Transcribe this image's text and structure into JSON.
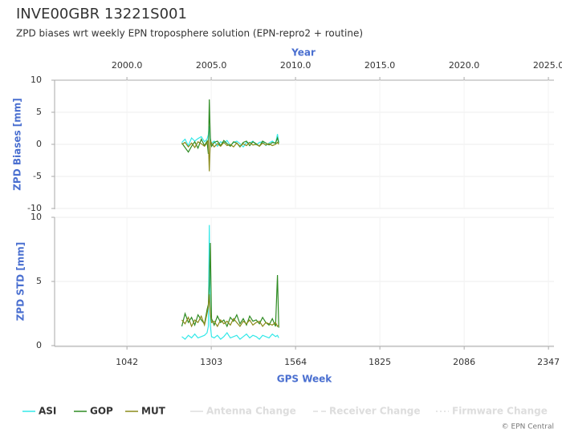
{
  "chart_data": [
    {
      "type": "line",
      "title": "INVE00GBR 13221S001",
      "subtitle": "ZPD biases wrt weekly EPN troposphere solution (EPN-repro2 + routine)",
      "x2label": "Year",
      "ylabel": "ZPD Biases [mm]",
      "xlim": [
        818,
        2364
      ],
      "x2lim": [
        1995.71,
        2025.33
      ],
      "x2ticks": [
        {
          "value": 2000,
          "label": "2000.0"
        },
        {
          "value": 2005,
          "label": "2005.0"
        },
        {
          "value": 2010,
          "label": "2010.0"
        },
        {
          "value": 2015,
          "label": "2015.0"
        },
        {
          "value": 2020,
          "label": "2020.0"
        },
        {
          "value": 2025,
          "label": "2025.0"
        }
      ],
      "ylim": [
        -10,
        10
      ],
      "yticks": [
        10,
        5,
        0,
        -5,
        -10
      ],
      "grid": true,
      "x": [
        1212,
        1222,
        1232,
        1242,
        1252,
        1262,
        1272,
        1282,
        1290,
        1294,
        1297,
        1300,
        1304,
        1312,
        1322,
        1332,
        1342,
        1352,
        1362,
        1372,
        1382,
        1392,
        1402,
        1412,
        1422,
        1432,
        1442,
        1452,
        1462,
        1472,
        1482,
        1492,
        1502,
        1508,
        1512
      ],
      "series": [
        {
          "name": "ASI",
          "color": "#33e8e8",
          "values": [
            0.3,
            0.8,
            -0.2,
            1.0,
            0.5,
            0.9,
            1.2,
            0.4,
            0.8,
            1.5,
            2.8,
            0.6,
            0.2,
            0.5,
            -0.3,
            0.4,
            0.2,
            0.6,
            -0.2,
            0.3,
            0.5,
            0.1,
            -0.4,
            0.3,
            0.2,
            0.5,
            -0.1,
            0.3,
            0.4,
            -0.2,
            0.2,
            0.5,
            0.1,
            1.6,
            0.3
          ]
        },
        {
          "name": "GOP",
          "color": "#2e8b22",
          "values": [
            0.2,
            -0.5,
            -1.2,
            -0.3,
            0.4,
            -0.6,
            0.8,
            -0.2,
            0.5,
            -1.5,
            7.0,
            1.0,
            -0.3,
            0.3,
            0.5,
            -0.2,
            0.6,
            0.1,
            -0.3,
            0.4,
            0.2,
            -0.4,
            0.3,
            0.5,
            -0.2,
            0.4,
            0.1,
            -0.3,
            0.5,
            0.2,
            -0.1,
            0.3,
            0.2,
            1.0,
            0.2
          ]
        },
        {
          "name": "MUT",
          "color": "#8a8a1a",
          "values": [
            0.0,
            0.3,
            -0.4,
            0.2,
            -0.5,
            0.4,
            0.1,
            -0.3,
            0.2,
            0.6,
            -4.2,
            0.5,
            0.2,
            -0.4,
            0.1,
            -0.3,
            0.3,
            -0.2,
            0.0,
            -0.4,
            0.2,
            -0.3,
            0.1,
            -0.2,
            0.3,
            -0.1,
            0.0,
            -0.3,
            0.2,
            -0.1,
            0.1,
            -0.2,
            0.0,
            0.3,
            0.0
          ]
        }
      ]
    },
    {
      "type": "line",
      "xlabel": "GPS Week",
      "ylabel": "ZPD STD [mm]",
      "xlim": [
        818,
        2364
      ],
      "xticks": [
        1042,
        1303,
        1564,
        1825,
        2086,
        2347
      ],
      "ylim": [
        0,
        10
      ],
      "yticks": [
        10,
        5,
        0
      ],
      "grid": true,
      "x": [
        1212,
        1222,
        1232,
        1242,
        1252,
        1262,
        1272,
        1282,
        1290,
        1294,
        1297,
        1300,
        1304,
        1312,
        1322,
        1332,
        1342,
        1352,
        1362,
        1372,
        1382,
        1392,
        1402,
        1412,
        1422,
        1432,
        1442,
        1452,
        1462,
        1472,
        1482,
        1492,
        1502,
        1508,
        1512
      ],
      "series": [
        {
          "name": "ASI",
          "color": "#33e8e8",
          "values": [
            0.7,
            0.5,
            0.8,
            0.6,
            0.9,
            0.6,
            0.7,
            0.8,
            1.0,
            1.5,
            9.4,
            1.6,
            0.7,
            0.6,
            0.8,
            0.5,
            0.7,
            1.0,
            0.6,
            0.7,
            0.8,
            0.5,
            0.7,
            0.9,
            0.6,
            0.8,
            0.7,
            0.5,
            0.8,
            0.7,
            0.6,
            0.9,
            0.7,
            0.8,
            0.6
          ]
        },
        {
          "name": "GOP",
          "color": "#2e8b22",
          "values": [
            1.5,
            2.5,
            1.8,
            2.2,
            1.6,
            2.4,
            2.0,
            1.7,
            2.8,
            3.2,
            4.8,
            8.0,
            2.1,
            1.6,
            2.3,
            1.8,
            2.0,
            1.5,
            2.2,
            1.9,
            2.4,
            1.7,
            2.1,
            1.6,
            2.3,
            1.9,
            2.0,
            1.7,
            2.2,
            1.8,
            1.6,
            2.1,
            1.5,
            5.5,
            1.4
          ]
        },
        {
          "name": "MUT",
          "color": "#8a8a1a",
          "values": [
            2.0,
            1.7,
            2.2,
            1.5,
            2.0,
            1.8,
            2.3,
            1.6,
            2.5,
            3.0,
            4.0,
            2.5,
            1.8,
            1.9,
            1.5,
            2.0,
            1.7,
            1.9,
            1.6,
            2.1,
            1.8,
            1.5,
            1.9,
            1.7,
            2.0,
            1.6,
            1.8,
            1.9,
            1.5,
            1.8,
            1.7,
            1.6,
            1.8,
            1.5,
            1.6
          ]
        }
      ]
    }
  ],
  "legend_extra": [
    {
      "name": "Antenna Change",
      "color": "#dddddd",
      "dash": "none"
    },
    {
      "name": "Receiver Change",
      "color": "#dddddd",
      "dash": "6 4"
    },
    {
      "name": "Firmware Change",
      "color": "#dddddd",
      "dash": "2 3"
    }
  ],
  "footer": "© EPN Central"
}
